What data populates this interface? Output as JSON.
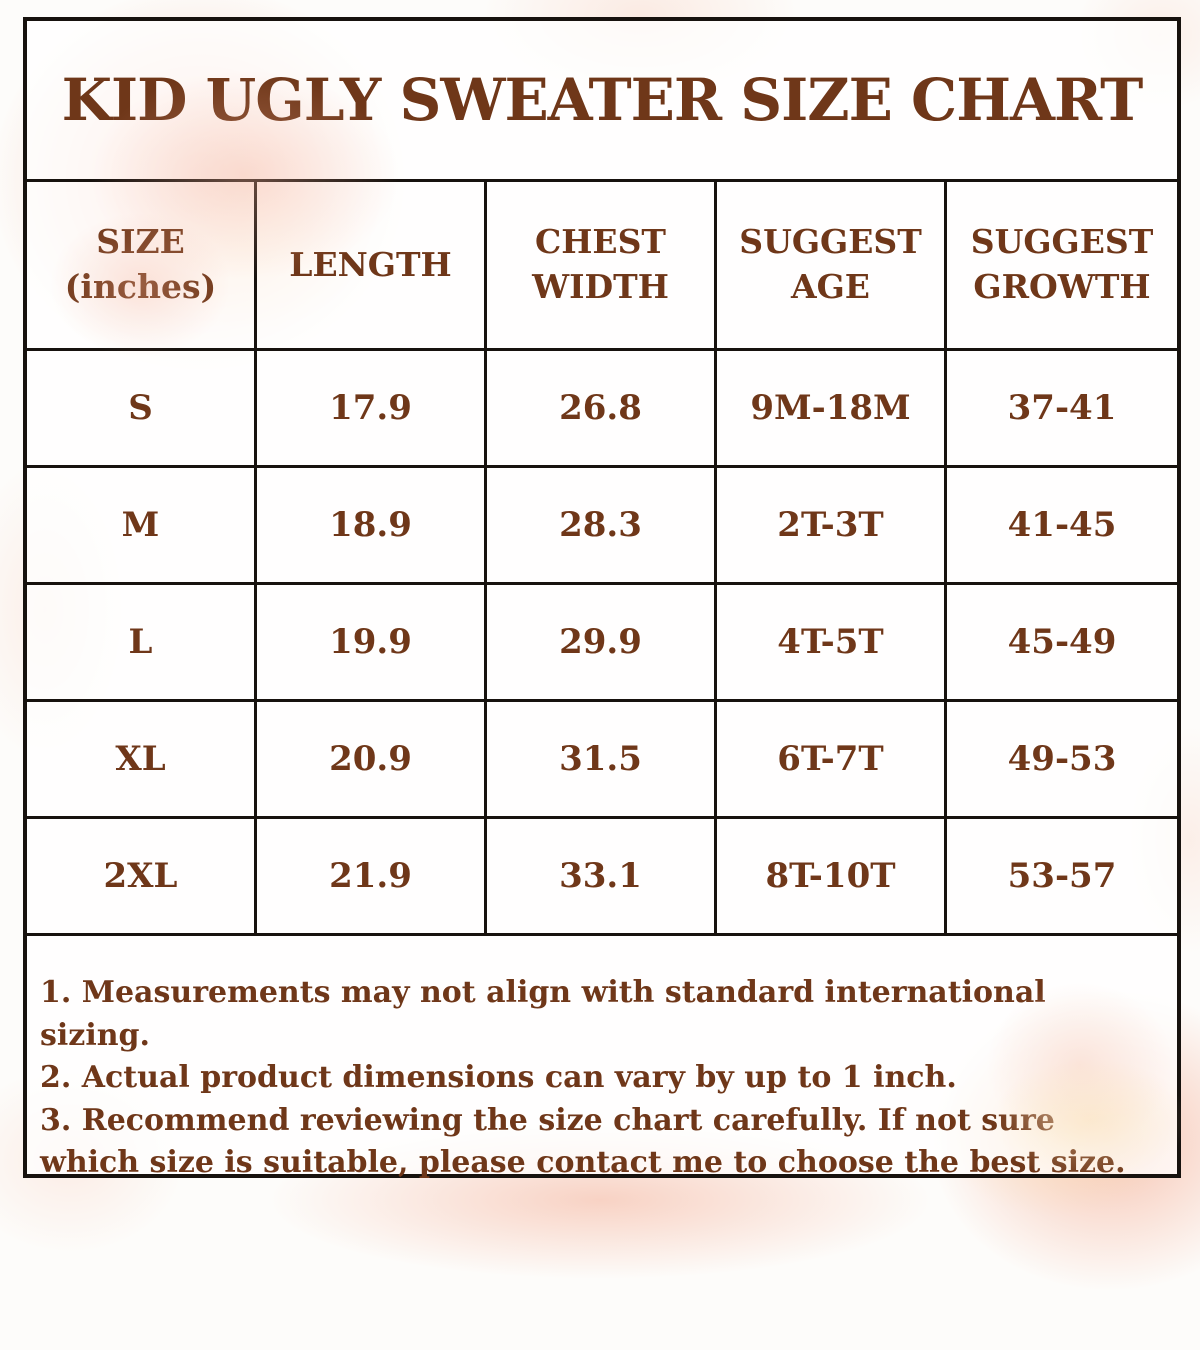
{
  "title": "KID UGLY SWEATER SIZE CHART",
  "colors": {
    "text_brown": "#6f3719",
    "border_dark": "#17120e",
    "watercolor_salmon": "#f4b098",
    "watercolor_blush": "#f8d5c6",
    "watercolor_cream": "#fae3b9"
  },
  "table": {
    "unit_note": "(inches)",
    "headers": [
      {
        "label": "SIZE\n(inches)"
      },
      {
        "label": "LENGTH"
      },
      {
        "label": "CHEST\nWIDTH"
      },
      {
        "label": "SUGGEST\nAGE"
      },
      {
        "label": "SUGGEST\nGROWTH"
      }
    ],
    "rows": [
      {
        "size": "S",
        "length": "17.9",
        "chest_width": "26.8",
        "suggest_age": "9M-18M",
        "suggest_growth": "37-41"
      },
      {
        "size": "M",
        "length": "18.9",
        "chest_width": "28.3",
        "suggest_age": "2T-3T",
        "suggest_growth": "41-45"
      },
      {
        "size": "L",
        "length": "19.9",
        "chest_width": "29.9",
        "suggest_age": "4T-5T",
        "suggest_growth": "45-49"
      },
      {
        "size": "XL",
        "length": "20.9",
        "chest_width": "31.5",
        "suggest_age": "6T-7T",
        "suggest_growth": "49-53"
      },
      {
        "size": "2XL",
        "length": "21.9",
        "chest_width": "33.1",
        "suggest_age": "8T-10T",
        "suggest_growth": "53-57"
      }
    ]
  },
  "notes": [
    "1. Measurements may not align with standard international sizing.",
    "2. Actual product dimensions can vary by up to 1 inch.",
    "3. Recommend reviewing the size chart carefully. If not sure which size is suitable, please contact me to choose the best size."
  ]
}
